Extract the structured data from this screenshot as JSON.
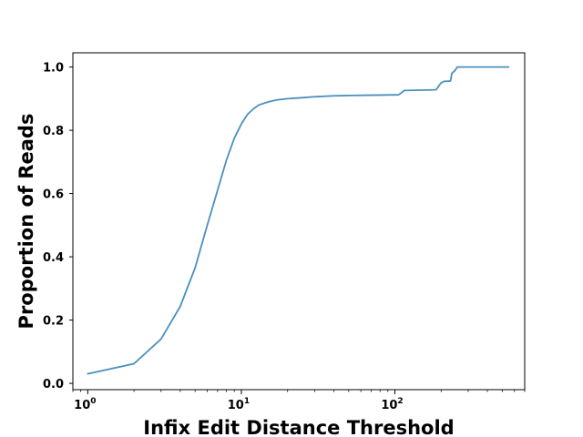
{
  "chart_data": {
    "type": "line",
    "title": "",
    "xlabel": "Infix Edit Distance Threshold",
    "ylabel": "Proportion of Reads",
    "xscale": "log",
    "xlim": [
      0.8,
      700
    ],
    "ylim": [
      -0.02,
      1.045
    ],
    "grid": false,
    "legend": "none",
    "line_color": "#4a90c0",
    "x_ticks": [
      {
        "value": 1,
        "label": "10",
        "exp": "0"
      },
      {
        "value": 10,
        "label": "10",
        "exp": "1"
      },
      {
        "value": 100,
        "label": "10",
        "exp": "2"
      }
    ],
    "y_ticks": [
      {
        "value": 0.0,
        "label": "0.0"
      },
      {
        "value": 0.2,
        "label": "0.2"
      },
      {
        "value": 0.4,
        "label": "0.4"
      },
      {
        "value": 0.6,
        "label": "0.6"
      },
      {
        "value": 0.8,
        "label": "0.8"
      },
      {
        "value": 1.0,
        "label": "1.0"
      }
    ],
    "series": [
      {
        "x": [
          1,
          2,
          3,
          4,
          5,
          6,
          7,
          8,
          9,
          10,
          11,
          12,
          13,
          15,
          17,
          20,
          25,
          30,
          40,
          50,
          70,
          100,
          105,
          110,
          115,
          150,
          185,
          190,
          195,
          200,
          210,
          220,
          230,
          235,
          245,
          255,
          300,
          400,
          550
        ],
        "y": [
          0.03,
          0.062,
          0.14,
          0.243,
          0.365,
          0.5,
          0.61,
          0.706,
          0.775,
          0.82,
          0.851,
          0.868,
          0.88,
          0.89,
          0.896,
          0.9,
          0.903,
          0.906,
          0.909,
          0.91,
          0.911,
          0.912,
          0.912,
          0.918,
          0.926,
          0.927,
          0.928,
          0.935,
          0.943,
          0.95,
          0.955,
          0.955,
          0.956,
          0.98,
          0.988,
          1.0,
          1.0,
          1.0,
          1.0
        ]
      }
    ]
  }
}
